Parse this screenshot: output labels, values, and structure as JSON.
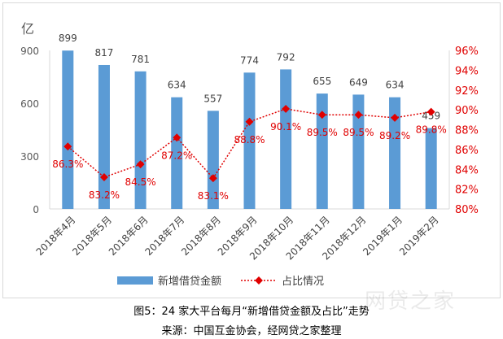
{
  "chart_data": {
    "type": "bar",
    "y_unit_label": "亿",
    "categories": [
      "2018年4月",
      "2018年5月",
      "2018年6月",
      "2018年7月",
      "2018年8月",
      "2018年9月",
      "2018年10月",
      "2018年11月",
      "2018年12月",
      "2019年1月",
      "2019年2月"
    ],
    "series": [
      {
        "name": "新增借贷金额",
        "type": "bar",
        "axis": "left",
        "color": "#5b9bd5",
        "values": [
          899,
          817,
          781,
          634,
          557,
          774,
          792,
          655,
          649,
          634,
          459
        ],
        "labels": [
          "899",
          "817",
          "781",
          "634",
          "557",
          "774",
          "792",
          "655",
          "649",
          "634",
          "459"
        ]
      },
      {
        "name": "占比情况",
        "type": "line",
        "axis": "right",
        "color": "#e00000",
        "values": [
          86.3,
          83.2,
          84.5,
          87.2,
          83.1,
          88.8,
          90.1,
          89.5,
          89.5,
          89.2,
          89.8
        ],
        "labels": [
          "86.3%",
          "83.2%",
          "84.5%",
          "87.2%",
          "83.1%",
          "88.8%",
          "90.1%",
          "89.5%",
          "89.5%",
          "89.2%",
          "89.8%"
        ]
      }
    ],
    "left_axis": {
      "ylim": [
        0,
        900
      ],
      "ticks": [
        "0",
        "300",
        "600",
        "900"
      ]
    },
    "right_axis": {
      "ylim": [
        80,
        96
      ],
      "ticks": [
        "80%",
        "82%",
        "84%",
        "86%",
        "88%",
        "90%",
        "92%",
        "94%",
        "96%"
      ]
    },
    "grid": false,
    "legend_position": "bottom"
  },
  "caption": "图5：24 家大平台每月“新增借贷金额及占比”走势",
  "source": "来源：中国互金协会，经网贷之家整理",
  "watermark": "网贷之家"
}
